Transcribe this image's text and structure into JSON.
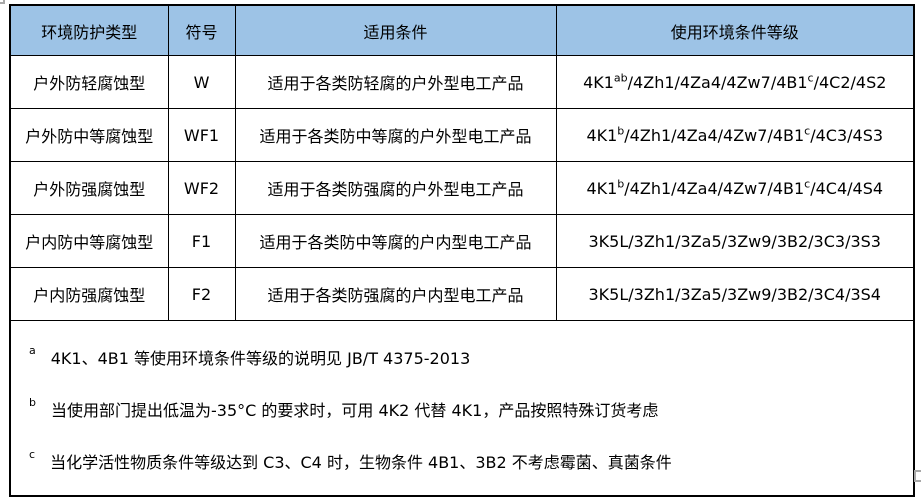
{
  "colors": {
    "header_bg": "#9DC3E6",
    "table_border": "#000000",
    "handle_gray": "#A8A8A8",
    "text": "#000000"
  },
  "table": {
    "columns": [
      "环境防护类型",
      "符号",
      "适用条件",
      "使用环境条件等级"
    ],
    "rows": [
      {
        "type": "户外防轻腐蚀型",
        "symbol": "W",
        "condition": "适用于各类防轻腐的户外型电工产品",
        "grade": [
          {
            "t": "4K1"
          },
          {
            "t": "ab",
            "sup": true
          },
          {
            "t": "/4Zh1/4Za4/4Zw7/4B1"
          },
          {
            "t": "c",
            "sup": true
          },
          {
            "t": "/4C2/4S2"
          }
        ]
      },
      {
        "type": "户外防中等腐蚀型",
        "symbol": "WF1",
        "condition": "适用于各类防中等腐的户外型电工产品",
        "grade": [
          {
            "t": "4K1"
          },
          {
            "t": "b",
            "sup": true
          },
          {
            "t": "/4Zh1/4Za4/4Zw7/4B1"
          },
          {
            "t": "c",
            "sup": true
          },
          {
            "t": "/4C3/4S3"
          }
        ]
      },
      {
        "type": "户外防强腐蚀型",
        "symbol": "WF2",
        "condition": "适用于各类防强腐的户外型电工产品",
        "grade": [
          {
            "t": "4K1"
          },
          {
            "t": "b",
            "sup": true
          },
          {
            "t": "/4Zh1/4Za4/4Zw7/4B1"
          },
          {
            "t": "c",
            "sup": true
          },
          {
            "t": "/4C4/4S4"
          }
        ]
      },
      {
        "type": "户内防中等腐蚀型",
        "symbol": "F1",
        "condition": "适用于各类防中等腐的户内型电工产品",
        "grade": [
          {
            "t": "3K5L/3Zh1/3Za5/3Zw9/3B2/3C3/3S3"
          }
        ]
      },
      {
        "type": "户内防强腐蚀型",
        "symbol": "F2",
        "condition": "适用于各类防强腐的户内型电工产品",
        "grade": [
          {
            "t": "3K5L/3Zh1/3Za5/3Zw9/3B2/3C4/3S4"
          }
        ]
      }
    ]
  },
  "footnotes": [
    {
      "marker": "a",
      "text": "4K1、4B1 等使用环境条件等级的说明见 JB/T 4375-2013"
    },
    {
      "marker": "b",
      "text": "当使用部门提出低温为-35°C 的要求时，可用 4K2 代替 4K1，产品按照特殊订货考虑"
    },
    {
      "marker": "c",
      "text": "当化学活性物质条件等级达到 C3、C4 时，生物条件 4B1、3B2 不考虑霉菌、真菌条件"
    }
  ]
}
